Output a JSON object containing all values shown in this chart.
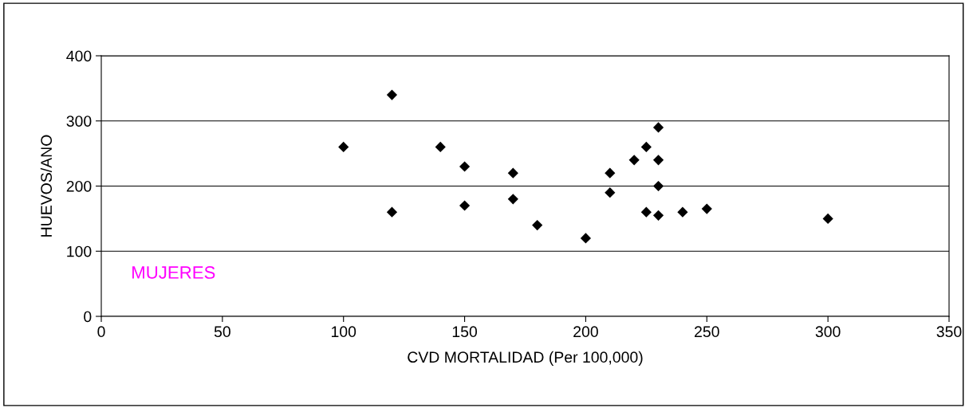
{
  "chart_data": {
    "type": "scatter",
    "xlabel": "CVD MORTALIDAD (Per 100,000)",
    "ylabel": "HUEVOS/ANO",
    "x": [
      100,
      120,
      120,
      140,
      150,
      150,
      170,
      170,
      180,
      200,
      210,
      210,
      220,
      225,
      225,
      230,
      230,
      230,
      230,
      240,
      250,
      300
    ],
    "values": [
      260,
      340,
      160,
      260,
      230,
      170,
      220,
      180,
      140,
      120,
      220,
      190,
      240,
      260,
      160,
      290,
      240,
      200,
      155,
      160,
      165,
      150
    ],
    "color": "#000000",
    "marker": "diamond",
    "xlim": [
      0,
      350
    ],
    "xticks": [
      0,
      50,
      100,
      150,
      200,
      250,
      300,
      350
    ],
    "ylim": [
      0,
      400
    ],
    "yticks": [
      0,
      100,
      200,
      300,
      400
    ],
    "grid": "y",
    "annotations": [
      "MUJERES"
    ]
  }
}
